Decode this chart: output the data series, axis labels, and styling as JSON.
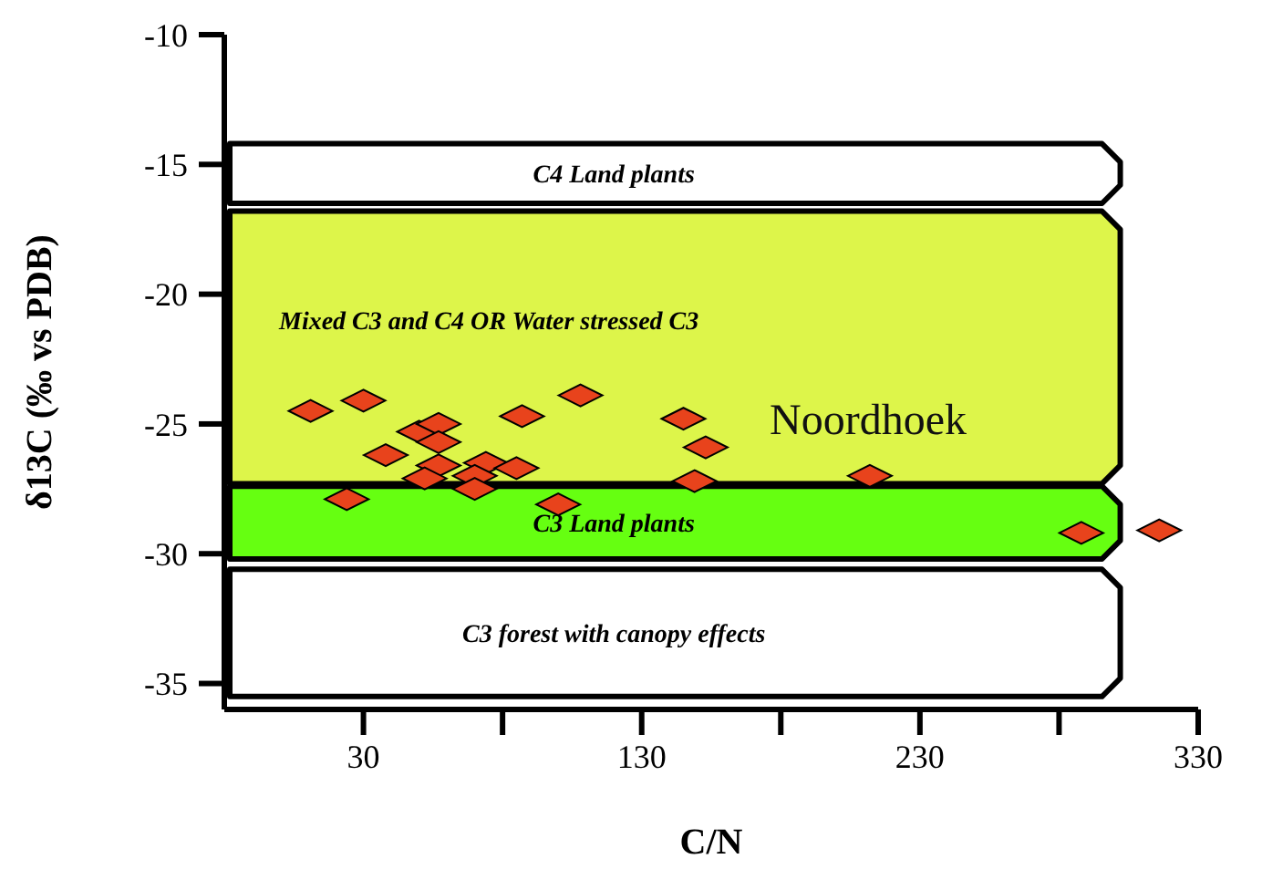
{
  "chart_data": {
    "type": "scatter",
    "xlabel": "C/N",
    "ylabel": "δ13C (‰ vs PDB)",
    "xlim": [
      -20,
      330
    ],
    "ylim": [
      -36,
      -10
    ],
    "xticks": [
      30,
      {
        "value": 80,
        "label": null
      },
      130,
      {
        "value": 180,
        "label": null
      },
      230,
      {
        "value": 280,
        "label": null
      },
      330
    ],
    "yticks": [
      -10,
      -15,
      -20,
      -25,
      -30,
      -35
    ],
    "grid": false,
    "marker": "diamond",
    "bands": [
      {
        "axis": "y",
        "from": -14.2,
        "to": -16.5,
        "label": "C4 Land plants",
        "color": "#ffffff"
      },
      {
        "axis": "y",
        "from": -16.8,
        "to": -27.3,
        "label": "Mixed C3 and C4 OR Water stressed C3",
        "color": "#ddf54a"
      },
      {
        "axis": "y",
        "from": -27.4,
        "to": -30.2,
        "label": "C3 Land plants",
        "color": "#66ff11"
      },
      {
        "axis": "y",
        "from": -30.6,
        "to": -35.5,
        "label": "C3 forest with canopy effects",
        "color": "#ffffff"
      }
    ],
    "series": [
      {
        "name": "Noordhoek",
        "color": "#e8431c",
        "x": [
          11,
          30,
          50,
          57,
          57,
          38,
          87,
          108,
          145,
          153,
          57,
          74,
          85,
          52,
          70,
          70,
          24,
          100,
          149,
          212,
          288,
          316
        ],
        "values": [
          -24.5,
          -24.1,
          -25.3,
          -25.0,
          -25.7,
          -26.2,
          -24.7,
          -23.9,
          -24.8,
          -25.9,
          -26.6,
          -26.5,
          -26.7,
          -27.1,
          -27.0,
          -27.5,
          -27.9,
          -28.1,
          -27.2,
          -27.0,
          -29.2,
          -29.1
        ]
      }
    ]
  }
}
